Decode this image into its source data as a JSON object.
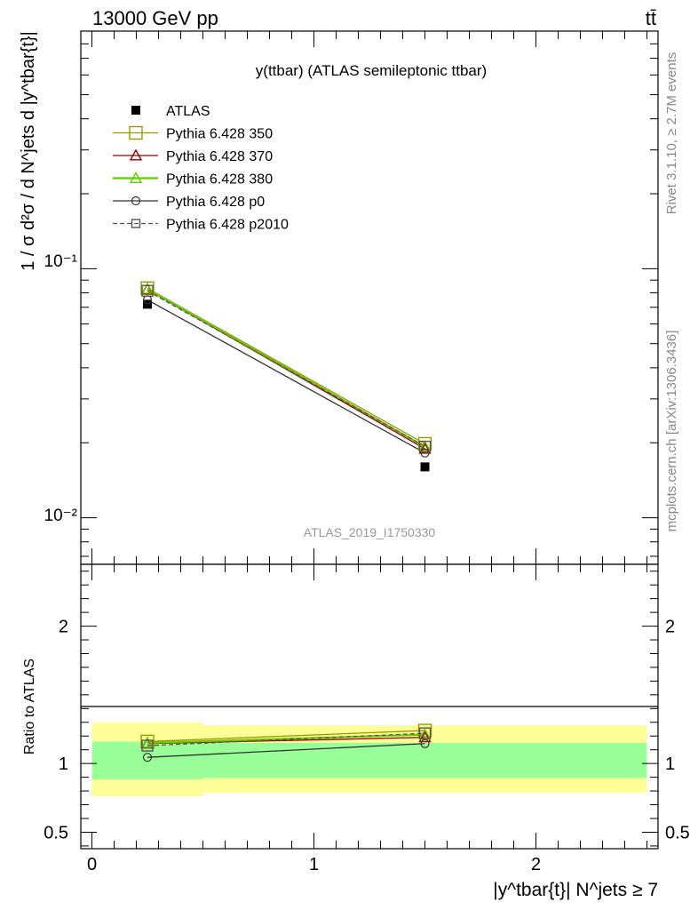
{
  "header": {
    "energy_label": "13000 GeV pp",
    "process_label": "tt̄"
  },
  "side_labels": {
    "rivet": "Rivet 3.1.10, ≥ 2.7M events",
    "mcplots": "mcplots.cern.ch [arXiv:1306.3436]"
  },
  "chart_data": [
    {
      "type": "line",
      "title": "y(ttbar) (ATLAS semileptonic ttbar)",
      "watermark": "ATLAS_2019_I1750330",
      "ylabel": "1 / σ d²σ / d N^jets d |y^tbar{t}|",
      "yscale": "log",
      "ylim": [
        0.0065,
        0.9
      ],
      "xlim": [
        -0.05,
        2.55
      ],
      "y_tick_labels": [
        "10⁻²",
        "10⁻¹"
      ],
      "x": [
        0.25,
        1.5
      ],
      "x_bin_edges": [
        0.0,
        0.5,
        2.5
      ],
      "series": [
        {
          "name": "ATLAS",
          "values": [
            0.072,
            0.016
          ],
          "style": "data",
          "color": "#000000"
        },
        {
          "name": "Pythia 6.428 350",
          "values": [
            0.0835,
            0.0198
          ],
          "style": "square-open",
          "color": "#999900"
        },
        {
          "name": "Pythia 6.428 370",
          "values": [
            0.0825,
            0.0189
          ],
          "style": "triangle-open",
          "color": "#990000"
        },
        {
          "name": "Pythia 6.428 380",
          "values": [
            0.083,
            0.0193
          ],
          "style": "triangle-open",
          "color": "#66cc00"
        },
        {
          "name": "Pythia 6.428 p0",
          "values": [
            0.075,
            0.0182
          ],
          "style": "circle-open",
          "color": "#333333"
        },
        {
          "name": "Pythia 6.428 p2010",
          "values": [
            0.0815,
            0.0193
          ],
          "style": "square-open-dashed",
          "color": "#555555"
        }
      ]
    },
    {
      "type": "line",
      "ylabel": "Ratio to ATLAS",
      "xlabel": "|y^tbar{t}| N^jets ≥ 7",
      "ylim": [
        0.38,
        2.45
      ],
      "y_ticks": [
        0.5,
        1,
        2
      ],
      "y_tick_labels": [
        "0.5",
        "1",
        "2"
      ],
      "x_ticks": [
        0,
        1,
        2
      ],
      "x_tick_labels": [
        "0",
        "1",
        "2"
      ],
      "x": [
        0.25,
        1.5
      ],
      "bands": {
        "x_bin_edges": [
          0.0,
          0.5,
          2.5
        ],
        "yellow_low": [
          0.76,
          0.785
        ],
        "yellow_high": [
          1.3,
          1.28
        ],
        "green_low": [
          0.885,
          0.895
        ],
        "green_high": [
          1.16,
          1.15
        ]
      },
      "series": [
        {
          "name": "Pythia 6.428 350",
          "values": [
            1.16,
            1.24
          ]
        },
        {
          "name": "Pythia 6.428 370",
          "values": [
            1.145,
            1.19
          ]
        },
        {
          "name": "Pythia 6.428 380",
          "values": [
            1.15,
            1.21
          ]
        },
        {
          "name": "Pythia 6.428 p0",
          "values": [
            1.045,
            1.145
          ]
        },
        {
          "name": "Pythia 6.428 p2010",
          "values": [
            1.13,
            1.22
          ]
        }
      ]
    }
  ]
}
